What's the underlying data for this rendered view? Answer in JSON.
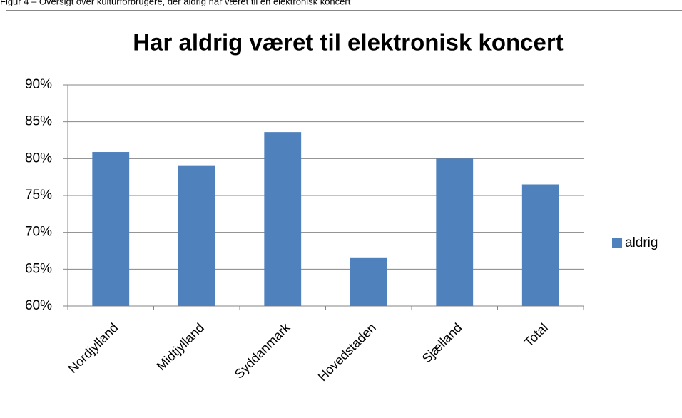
{
  "chart_data": {
    "type": "bar",
    "caption": "Figur 4 – Oversigt over kulturforbrugere, der aldrig har været til en elektronisk koncert",
    "title": "Har aldrig været til elektronisk koncert",
    "categories": [
      "Nordjylland",
      "Midtjylland",
      "Syddanmark",
      "Hovedstaden",
      "Sjælland",
      "Total"
    ],
    "series": [
      {
        "name": "aldrig",
        "color": "#4f81bd",
        "values": [
          80.9,
          79.0,
          83.6,
          66.6,
          80.0,
          76.5
        ]
      }
    ],
    "ylim": [
      60,
      90
    ],
    "yticks": [
      {
        "value": 60,
        "label": "60%"
      },
      {
        "value": 65,
        "label": "65%"
      },
      {
        "value": 70,
        "label": "70%"
      },
      {
        "value": 75,
        "label": "75%"
      },
      {
        "value": 80,
        "label": "80%"
      },
      {
        "value": 85,
        "label": "85%"
      },
      {
        "value": 90,
        "label": "90%"
      }
    ],
    "grid": true,
    "legend": "right"
  }
}
